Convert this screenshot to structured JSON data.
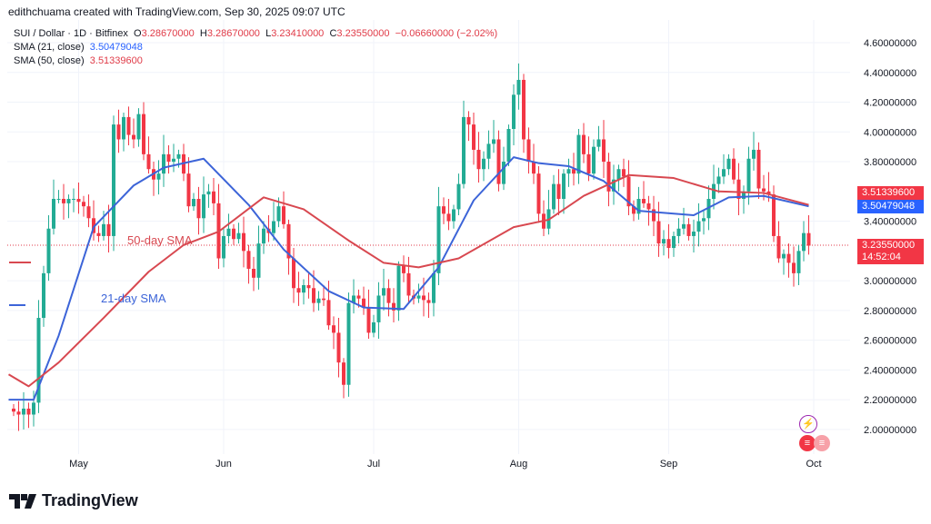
{
  "credit": "edithchuama created with TradingView.com, Sep 30, 2025 09:07 UTC",
  "legend": {
    "symbol": "SUI / Dollar · 1D · Bitfinex",
    "o_label": "O",
    "o": "3.28670000",
    "h_label": "H",
    "h": "3.28670000",
    "l_label": "L",
    "l": "3.23410000",
    "c_label": "C",
    "c": "3.23550000",
    "change": "−0.06660000 (−2.02%)",
    "sma21_label": "SMA (21, close)",
    "sma21": "3.50479048",
    "sma50_label": "SMA (50, close)",
    "sma50": "3.51339600"
  },
  "price_tags": {
    "sma50": "3.51339600",
    "sma21": "3.50479048",
    "last": "3.23550000",
    "countdown": "14:52:04"
  },
  "annotations": {
    "sma50": "50-day SMA",
    "sma21": "21-day SMA"
  },
  "brand": "TradingView",
  "colors": {
    "up": "#22ab94",
    "down": "#f23645",
    "sma21": "#3c64d8",
    "sma50": "#d84850"
  },
  "chart_data": {
    "type": "candlestick",
    "title": "SUI / Dollar · 1D · Bitfinex",
    "ylim": [
      1.9,
      4.65
    ],
    "y_ticks": [
      "4.60000000",
      "4.40000000",
      "4.20000000",
      "4.00000000",
      "3.80000000",
      "3.40000000",
      "3.00000000",
      "2.80000000",
      "2.60000000",
      "2.40000000",
      "2.20000000",
      "2.00000000"
    ],
    "x_ticks": [
      {
        "label": "May",
        "day": 13
      },
      {
        "label": "Jun",
        "day": 42
      },
      {
        "label": "Jul",
        "day": 72
      },
      {
        "label": "Aug",
        "day": 101
      },
      {
        "label": "Sep",
        "day": 131
      },
      {
        "label": "Oct",
        "day": 160
      }
    ],
    "first_open": 2.14,
    "closes": [
      2.12,
      2.1,
      2.14,
      2.1,
      2.18,
      2.75,
      3.05,
      3.35,
      3.55,
      3.55,
      3.52,
      3.55,
      3.55,
      3.53,
      3.5,
      3.42,
      3.32,
      3.3,
      3.38,
      3.3,
      4.05,
      3.95,
      4.1,
      3.98,
      3.95,
      4.12,
      3.85,
      3.75,
      3.68,
      3.72,
      3.85,
      3.8,
      3.82,
      3.85,
      3.72,
      3.5,
      3.55,
      3.42,
      3.58,
      3.6,
      3.52,
      3.15,
      3.3,
      3.35,
      3.28,
      3.32,
      3.2,
      3.08,
      3.02,
      3.25,
      3.35,
      3.32,
      3.4,
      3.5,
      3.38,
      3.15,
      2.95,
      2.92,
      2.97,
      2.95,
      2.85,
      2.88,
      2.87,
      2.7,
      2.65,
      2.45,
      2.3,
      2.85,
      2.9,
      2.88,
      2.82,
      2.65,
      2.72,
      2.9,
      2.95,
      2.85,
      2.8,
      3.1,
      3.05,
      2.9,
      2.88,
      2.9,
      2.87,
      2.85,
      3.05,
      3.5,
      3.45,
      3.4,
      3.48,
      3.65,
      4.1,
      4.05,
      3.88,
      3.75,
      3.82,
      3.92,
      3.95,
      3.65,
      3.8,
      4.02,
      4.25,
      4.35,
      3.95,
      3.8,
      3.72,
      3.45,
      3.35,
      3.48,
      3.65,
      3.55,
      3.72,
      3.75,
      3.72,
      3.98,
      3.85,
      3.72,
      3.9,
      3.95,
      3.8,
      3.6,
      3.68,
      3.75,
      3.7,
      3.5,
      3.45,
      3.55,
      3.52,
      3.48,
      3.4,
      3.25,
      3.28,
      3.22,
      3.3,
      3.35,
      3.38,
      3.3,
      3.33,
      3.4,
      3.42,
      3.55,
      3.65,
      3.7,
      3.75,
      3.82,
      3.68,
      3.55,
      3.6,
      3.82,
      3.88,
      3.62,
      3.6,
      3.58,
      3.3,
      3.15,
      3.18,
      3.12,
      3.05,
      3.2,
      3.32,
      3.2355
    ],
    "series": [
      {
        "name": "SMA (21, close)",
        "points": [
          [
            -1,
            2.2
          ],
          [
            4,
            2.2
          ],
          [
            9,
            2.63
          ],
          [
            16,
            3.36
          ],
          [
            24,
            3.64
          ],
          [
            30,
            3.76
          ],
          [
            38,
            3.82
          ],
          [
            47,
            3.51
          ],
          [
            54,
            3.21
          ],
          [
            63,
            2.93
          ],
          [
            70,
            2.82
          ],
          [
            78,
            2.81
          ],
          [
            85,
            3.09
          ],
          [
            92,
            3.54
          ],
          [
            100,
            3.83
          ],
          [
            105,
            3.79
          ],
          [
            111,
            3.77
          ],
          [
            118,
            3.67
          ],
          [
            125,
            3.47
          ],
          [
            136,
            3.44
          ],
          [
            143,
            3.56
          ],
          [
            150,
            3.57
          ],
          [
            159,
            3.5
          ]
        ]
      },
      {
        "name": "SMA (50, close)",
        "points": [
          [
            -1,
            2.37
          ],
          [
            3,
            2.29
          ],
          [
            9,
            2.45
          ],
          [
            18,
            2.75
          ],
          [
            27,
            3.06
          ],
          [
            34,
            3.24
          ],
          [
            41,
            3.33
          ],
          [
            50,
            3.56
          ],
          [
            58,
            3.48
          ],
          [
            67,
            3.27
          ],
          [
            74,
            3.12
          ],
          [
            81,
            3.09
          ],
          [
            89,
            3.15
          ],
          [
            100,
            3.36
          ],
          [
            107,
            3.41
          ],
          [
            114,
            3.57
          ],
          [
            123,
            3.71
          ],
          [
            132,
            3.69
          ],
          [
            141,
            3.6
          ],
          [
            150,
            3.59
          ],
          [
            159,
            3.51
          ]
        ]
      }
    ]
  }
}
